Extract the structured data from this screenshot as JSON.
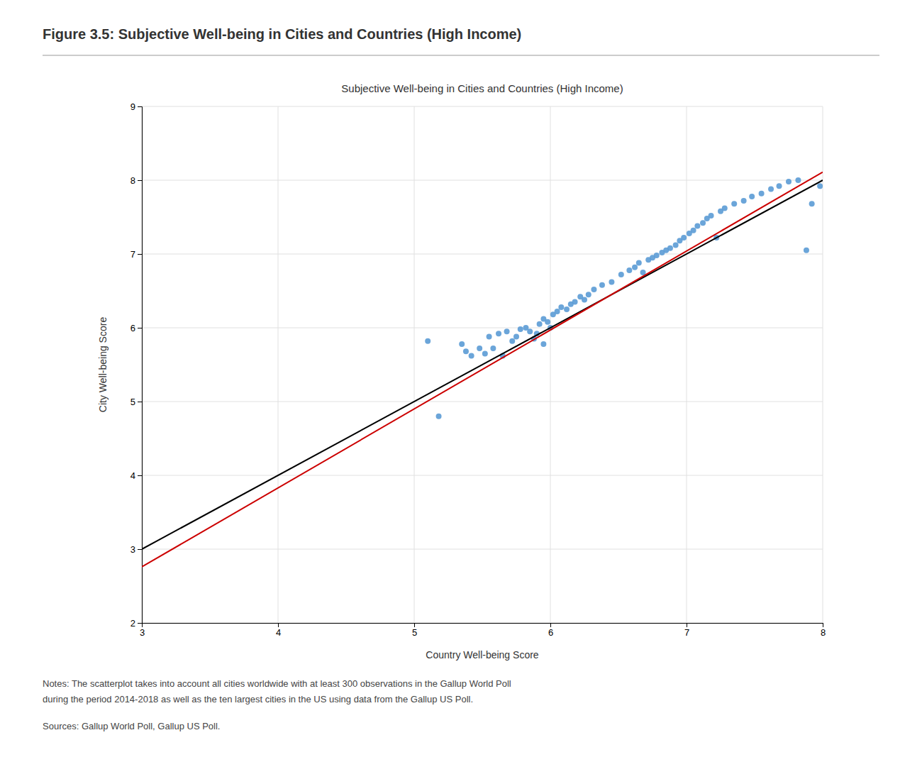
{
  "chart_data": {
    "type": "scatter",
    "title": "Figure 3.5: Subjective Well-being in Cities and Countries (High Income)",
    "subtitle": "Subjective Well-being in Cities and Countries (High Income)",
    "x_label": "Country Well-being Score",
    "y_label": "City Well-being Score",
    "annotations": [
      "Notes: The scatterplot takes into account all cities worldwide with at least 300 observations in the Gallup World Poll",
      "during the period 2014-2018 as well as the ten largest cities in the US using data from the Gallup US Poll.",
      "Sources: Gallup World Poll, Gallup US Poll."
    ],
    "xlim": [
      3,
      8
    ],
    "ylim": [
      2,
      9
    ],
    "xticks": [
      3,
      4,
      5,
      6,
      7,
      8
    ],
    "yticks": [
      2,
      3,
      4,
      5,
      6,
      7,
      8,
      9
    ],
    "grid": true,
    "series": [
      {
        "type": "scatter",
        "color": "#5b9bd5",
        "x": [
          5.1,
          5.18,
          5.35,
          5.38,
          5.42,
          5.48,
          5.52,
          5.55,
          5.58,
          5.62,
          5.65,
          5.68,
          5.72,
          5.75,
          5.78,
          5.82,
          5.85,
          5.88,
          5.9,
          5.92,
          5.95,
          5.95,
          5.98,
          6.0,
          6.02,
          6.05,
          6.08,
          6.12,
          6.15,
          6.18,
          6.22,
          6.25,
          6.28,
          6.32,
          6.38,
          6.45,
          6.52,
          6.58,
          6.62,
          6.65,
          6.68,
          6.72,
          6.75,
          6.78,
          6.82,
          6.85,
          6.88,
          6.92,
          6.95,
          6.98,
          7.02,
          7.05,
          7.08,
          7.12,
          7.15,
          7.18,
          7.22,
          7.25,
          7.28,
          7.35,
          7.42,
          7.48,
          7.55,
          7.62,
          7.68,
          7.75,
          7.82,
          7.88,
          7.92,
          7.98
        ],
        "values": [
          5.82,
          4.8,
          5.78,
          5.68,
          5.62,
          5.72,
          5.65,
          5.88,
          5.72,
          5.92,
          5.62,
          5.95,
          5.82,
          5.88,
          5.98,
          6.0,
          5.95,
          5.85,
          5.92,
          6.05,
          5.78,
          6.12,
          6.08,
          6.0,
          6.18,
          6.22,
          6.28,
          6.25,
          6.32,
          6.35,
          6.42,
          6.38,
          6.45,
          6.52,
          6.58,
          6.62,
          6.72,
          6.78,
          6.82,
          6.88,
          6.75,
          6.92,
          6.95,
          6.98,
          7.02,
          7.05,
          7.08,
          7.12,
          7.18,
          7.22,
          7.28,
          7.32,
          7.38,
          7.42,
          7.48,
          7.52,
          7.22,
          7.58,
          7.62,
          7.68,
          7.72,
          7.78,
          7.82,
          7.88,
          7.92,
          7.98,
          8.0,
          7.05,
          7.68,
          7.92
        ]
      },
      {
        "type": "line",
        "color": "#000000",
        "x": [
          3,
          8
        ],
        "values": [
          3,
          8
        ]
      },
      {
        "type": "line",
        "color": "#cc0000",
        "x": [
          3,
          8
        ],
        "values": [
          2.76,
          8.11
        ]
      }
    ]
  }
}
